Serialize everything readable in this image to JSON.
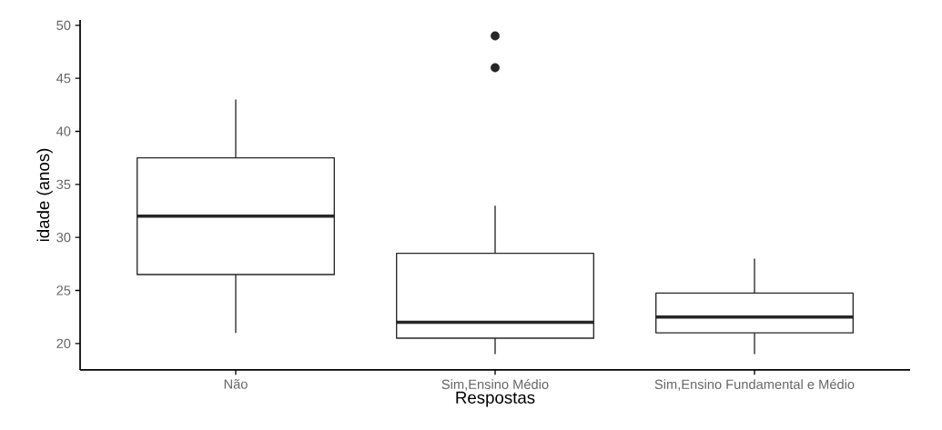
{
  "chart_data": {
    "type": "box",
    "xlabel": "Respostas",
    "ylabel": "idade (anos)",
    "categories": [
      "Não",
      "Sim,Ensino Médio",
      "Sim,Ensino Fundamental e Médio"
    ],
    "boxes": [
      {
        "low": 21,
        "q1": 26.5,
        "median": 32,
        "q3": 37.5,
        "high": 43
      },
      {
        "low": 19,
        "q1": 20.5,
        "median": 22,
        "q3": 28.5,
        "high": 33,
        "outliers": [
          46,
          49
        ]
      },
      {
        "low": 19,
        "q1": 21,
        "median": 22.5,
        "q3": 24.75,
        "high": 28
      }
    ],
    "ylim": [
      17.5,
      50.5
    ],
    "yticks": [
      20,
      25,
      30,
      35,
      40,
      45,
      50
    ],
    "grid": false
  }
}
